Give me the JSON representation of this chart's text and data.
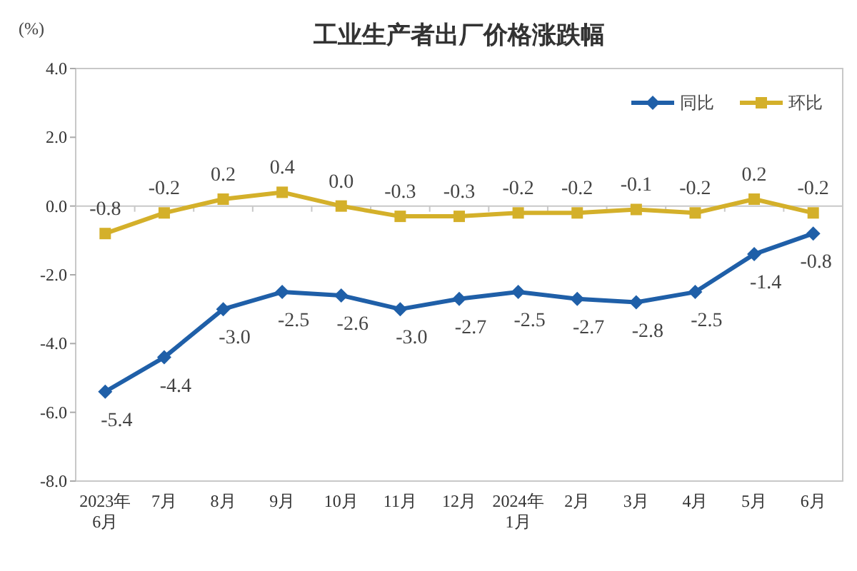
{
  "chart_data": {
    "type": "line",
    "title": "工业生产者出厂价格涨跌幅",
    "ylabel": "(%)",
    "categories": [
      "2023年\n6月",
      "7月",
      "8月",
      "9月",
      "10月",
      "11月",
      "12月",
      "2024年\n1月",
      "2月",
      "3月",
      "4月",
      "5月",
      "6月"
    ],
    "series": [
      {
        "name": "同比",
        "color": "#1f5fa8",
        "marker": "diamond",
        "values": [
          -5.4,
          -4.4,
          -3.0,
          -2.5,
          -2.6,
          -3.0,
          -2.7,
          -2.5,
          -2.7,
          -2.8,
          -2.5,
          -1.4,
          -0.8
        ],
        "value_labels": [
          "-5.4",
          "-4.4",
          "-3.0",
          "-2.5",
          "-2.6",
          "-3.0",
          "-2.7",
          "-2.5",
          "-2.7",
          "-2.8",
          "-2.5",
          "-1.4",
          "-0.8"
        ]
      },
      {
        "name": "环比",
        "color": "#d4b02a",
        "marker": "square",
        "values": [
          -0.8,
          -0.2,
          0.2,
          0.4,
          0.0,
          -0.3,
          -0.3,
          -0.2,
          -0.2,
          -0.1,
          -0.2,
          0.2,
          -0.2
        ],
        "value_labels": [
          "-0.8",
          "-0.2",
          "0.2",
          "0.4",
          "0.0",
          "-0.3",
          "-0.3",
          "-0.2",
          "-0.2",
          "-0.1",
          "-0.2",
          "0.2",
          "-0.2"
        ]
      }
    ],
    "ylim": [
      -8,
      4
    ],
    "yticks": [
      {
        "value": 4,
        "label": "4.0"
      },
      {
        "value": 2,
        "label": "2.0"
      },
      {
        "value": 0,
        "label": "0.0"
      },
      {
        "value": -2,
        "label": "-2.0"
      },
      {
        "value": -4,
        "label": "-4.0"
      },
      {
        "value": -6,
        "label": "-6.0"
      },
      {
        "value": -8,
        "label": "-8.0"
      }
    ],
    "legend": "top right",
    "line_style": "solid"
  }
}
